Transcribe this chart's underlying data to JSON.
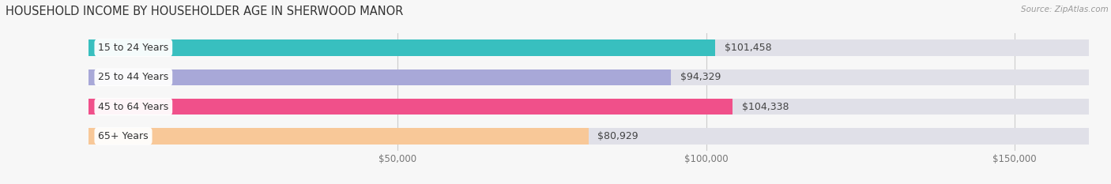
{
  "title": "HOUSEHOLD INCOME BY HOUSEHOLDER AGE IN SHERWOOD MANOR",
  "source": "Source: ZipAtlas.com",
  "categories": [
    "15 to 24 Years",
    "25 to 44 Years",
    "45 to 64 Years",
    "65+ Years"
  ],
  "values": [
    101458,
    94329,
    104338,
    80929
  ],
  "bar_colors": [
    "#38bfbf",
    "#a8a8d8",
    "#f0508a",
    "#f8c898"
  ],
  "bar_bg_color": "#e0e0e8",
  "value_labels": [
    "$101,458",
    "$94,329",
    "$104,338",
    "$80,929"
  ],
  "x_tick_labels": [
    "$50,000",
    "$100,000",
    "$150,000"
  ],
  "x_ticks": [
    50000,
    100000,
    150000
  ],
  "xlim": [
    0,
    162000
  ],
  "background_color": "#f7f7f7",
  "title_fontsize": 10.5,
  "label_fontsize": 9,
  "value_fontsize": 9,
  "tick_fontsize": 8.5,
  "bar_height": 0.55,
  "bar_gap": 0.12
}
